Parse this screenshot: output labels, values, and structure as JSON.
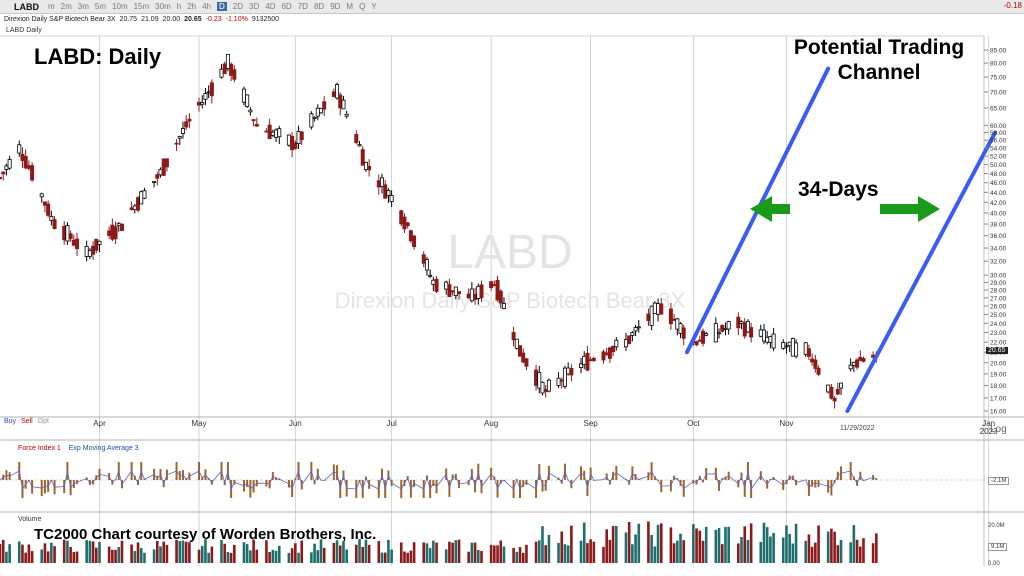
{
  "toolbar": {
    "symbol": "LABD",
    "timeframes": [
      "m",
      "2m",
      "3m",
      "5m",
      "10m",
      "15m",
      "30m",
      "h",
      "2h",
      "4h",
      "D",
      "2D",
      "3D",
      "4D",
      "6D",
      "7D",
      "8D",
      "9D",
      "M",
      "Q",
      "Y"
    ],
    "active_timeframe": "D",
    "corner_change": "-0.18"
  },
  "info": {
    "name": "Direxion Daily S&P Biotech Bear 3X",
    "open": "20.75",
    "high": "21.09",
    "low": "20.00",
    "close": "20.65",
    "change": "-0.23",
    "change_pct": "-1.10%",
    "volume": "9132500"
  },
  "panels": {
    "price_tag": "LABD Daily",
    "force_index": "Force Index 1",
    "ema": "Exp Moving Average 3",
    "volume": "Volume",
    "buy": "Buy",
    "sell": "Sell",
    "opt": "Opt",
    "log": "Log",
    "date_marker": "11/29/2022",
    "fi_value": "-2.1M",
    "vol_value": "9.1M",
    "vol_axis": [
      "20.0M",
      "0.00"
    ],
    "last_price": "20.65"
  },
  "annotations": {
    "title": "LABD:  Daily",
    "channel": "Potential Trading\nChannel",
    "days": "34-Days",
    "credit": "TC2000 Chart courtesy of Worden Brothers, Inc."
  },
  "watermark": {
    "symbol": "LABD",
    "name": "Direxion Daily S&P Biotech Bear 3X"
  },
  "colors": {
    "up": "#000000",
    "down": "#8b1a1a",
    "channel": "#3a5cf0",
    "arrow": "#1a9a1a",
    "fi_up": "#a0642a",
    "vol_up": "#8b1a1a",
    "vol_down": "#1f6e6e"
  },
  "chart_data": {
    "type": "candlestick",
    "scale": "log",
    "ylim": [
      16.0,
      85.0
    ],
    "y_ticks": [
      16,
      17,
      18,
      19,
      20,
      21,
      22,
      23,
      24,
      25,
      26,
      27,
      28,
      29,
      30,
      32,
      34,
      36,
      38,
      40,
      42,
      44,
      46,
      48,
      50,
      52,
      54,
      56,
      58,
      60,
      65,
      70,
      75,
      80,
      85
    ],
    "x_labels": [
      "Apr",
      "May",
      "Jun",
      "Jul",
      "Aug",
      "Sep",
      "Oct",
      "Nov",
      "Jan\n2023"
    ],
    "x_label_dates": [
      "2022-04-01",
      "2022-05-02",
      "2022-06-01",
      "2022-07-01",
      "2022-08-01",
      "2022-09-01",
      "2022-10-03",
      "2022-11-01",
      "2023-01-03"
    ],
    "price_key_points": [
      {
        "date": "2022-03-01",
        "close": 47
      },
      {
        "date": "2022-03-07",
        "close": 54
      },
      {
        "date": "2022-03-17",
        "close": 39
      },
      {
        "date": "2022-03-28",
        "close": 33
      },
      {
        "date": "2022-04-08",
        "close": 38
      },
      {
        "date": "2022-04-20",
        "close": 48
      },
      {
        "date": "2022-05-05",
        "close": 70
      },
      {
        "date": "2022-05-11",
        "close": 80
      },
      {
        "date": "2022-05-20",
        "close": 60
      },
      {
        "date": "2022-06-01",
        "close": 55
      },
      {
        "date": "2022-06-14",
        "close": 70
      },
      {
        "date": "2022-06-23",
        "close": 50
      },
      {
        "date": "2022-07-01",
        "close": 43
      },
      {
        "date": "2022-07-14",
        "close": 29
      },
      {
        "date": "2022-07-26",
        "close": 27
      },
      {
        "date": "2022-08-02",
        "close": 29
      },
      {
        "date": "2022-08-10",
        "close": 21
      },
      {
        "date": "2022-08-18",
        "close": 17.5
      },
      {
        "date": "2022-08-30",
        "close": 20
      },
      {
        "date": "2022-09-12",
        "close": 22
      },
      {
        "date": "2022-09-23",
        "close": 26
      },
      {
        "date": "2022-10-03",
        "close": 22
      },
      {
        "date": "2022-10-17",
        "close": 24
      },
      {
        "date": "2022-10-28",
        "close": 22
      },
      {
        "date": "2022-11-08",
        "close": 21
      },
      {
        "date": "2022-11-16",
        "close": 16.8
      },
      {
        "date": "2022-11-22",
        "close": 20
      },
      {
        "date": "2022-11-29",
        "close": 20.65
      }
    ],
    "last_candle": {
      "date": "2022-11-29",
      "open": 20.75,
      "high": 21.09,
      "low": 20.0,
      "close": 20.65
    },
    "channel_lines": [
      {
        "start": {
          "date": "2022-10-01",
          "price": 21
        },
        "end": {
          "date": "2022-11-14",
          "price": 78
        }
      },
      {
        "start": {
          "date": "2022-11-20",
          "price": 16
        },
        "end": {
          "date": "2023-01-05",
          "price": 58
        }
      }
    ],
    "days_between": 34
  }
}
